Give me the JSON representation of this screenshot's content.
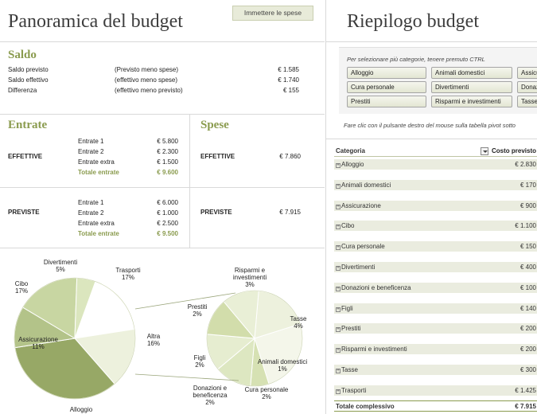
{
  "overview": {
    "title": "Panoramica del budget",
    "enter_expenses_button": "Immettere le spese"
  },
  "balance": {
    "title": "Saldo",
    "rows": [
      {
        "label": "Saldo previsto",
        "desc": "(Previsto meno spese)",
        "value": "€ 1.585"
      },
      {
        "label": "Saldo effettivo",
        "desc": "(effettivo meno spese)",
        "value": "€ 1.740"
      },
      {
        "label": "Differenza",
        "desc": "(effettivo meno previsto)",
        "value": "€ 155"
      }
    ]
  },
  "income": {
    "title": "Entrate",
    "actual": {
      "label": "EFFETTIVE",
      "rows": [
        {
          "label": "Entrate 1",
          "value": "€ 5.800"
        },
        {
          "label": "Entrate 2",
          "value": "€ 2.300"
        },
        {
          "label": "Entrate extra",
          "value": "€ 1.500"
        }
      ],
      "total_label": "Totale entrate",
      "total_value": "€ 9.600"
    },
    "planned": {
      "label": "PREVISTE",
      "rows": [
        {
          "label": "Entrate 1",
          "value": "€ 6.000"
        },
        {
          "label": "Entrate 2",
          "value": "€ 1.000"
        },
        {
          "label": "Entrate extra",
          "value": "€ 2.500"
        }
      ],
      "total_label": "Totale entrate",
      "total_value": "€ 9.500"
    }
  },
  "expenses": {
    "title": "Spese",
    "actual": {
      "label": "EFFETTIVE",
      "value": "€ 7.860"
    },
    "planned": {
      "label": "PREVISTE",
      "value": "€ 7.915"
    }
  },
  "chart_data": {
    "type": "pie",
    "main_pie": {
      "labels": [
        "Trasporti",
        "Altra",
        "Alloggio",
        "Assicurazione",
        "Cibo",
        "Divertimenti"
      ],
      "percent_labels": [
        "17%",
        "16%",
        "",
        "11%",
        "17%",
        "5%"
      ],
      "values": [
        17,
        16,
        34,
        11,
        17,
        5
      ],
      "colors": [
        "#ffffff",
        "#edf1dd",
        "#97a866",
        "#b3c389",
        "#c8d6a2",
        "#dbe6be"
      ]
    },
    "sub_pie": {
      "labels": [
        "Risparmi e investimenti",
        "Tasse",
        "Animali domestici",
        "Cura personale",
        "Donazioni e beneficenza",
        "Figli",
        "Prestiti"
      ],
      "percent_labels": [
        "3%",
        "4%",
        "1%",
        "2%",
        "2%",
        "2%",
        "2%"
      ],
      "values": [
        3,
        4,
        1,
        2,
        2,
        2,
        2
      ],
      "colors": [
        "#edf1dd",
        "#f4f6ea",
        "#d6e1b3",
        "#dde7c1",
        "#e6edd0",
        "#d2ddab",
        "#e9efd6"
      ]
    }
  },
  "summary": {
    "title": "Riepilogo budget",
    "slicer_hint": "Per selezionare più categorie, tenere premuto CTRL",
    "slicer_items": [
      "Alloggio",
      "Animali domestici",
      "Assicurazione",
      "Cura personale",
      "Divertimenti",
      "Donazioni e beneficenza",
      "Prestiti",
      "Risparmi e investimenti",
      "Tasse"
    ],
    "pivot_hint": "Fare clic con il pulsante destro del mouse sulla tabella pivot sotto",
    "pivot": {
      "col_category": "Categoria",
      "col_planned": "Costo previsto",
      "rows": [
        {
          "category": "Alloggio",
          "value": "€ 2.830"
        },
        {
          "category": "Animali domestici",
          "value": "€ 170"
        },
        {
          "category": "Assicurazione",
          "value": "€ 900"
        },
        {
          "category": "Cibo",
          "value": "€ 1.100"
        },
        {
          "category": "Cura personale",
          "value": "€ 150"
        },
        {
          "category": "Divertimenti",
          "value": "€ 400"
        },
        {
          "category": "Donazioni e beneficenza",
          "value": "€ 100"
        },
        {
          "category": "Figli",
          "value": "€ 140"
        },
        {
          "category": "Prestiti",
          "value": "€ 200"
        },
        {
          "category": "Risparmi e investimenti",
          "value": "€ 200"
        },
        {
          "category": "Tasse",
          "value": "€ 300"
        },
        {
          "category": "Trasporti",
          "value": "€ 1.425"
        }
      ],
      "total_label": "Totale complessivo",
      "total_value": "€ 7.915"
    }
  }
}
